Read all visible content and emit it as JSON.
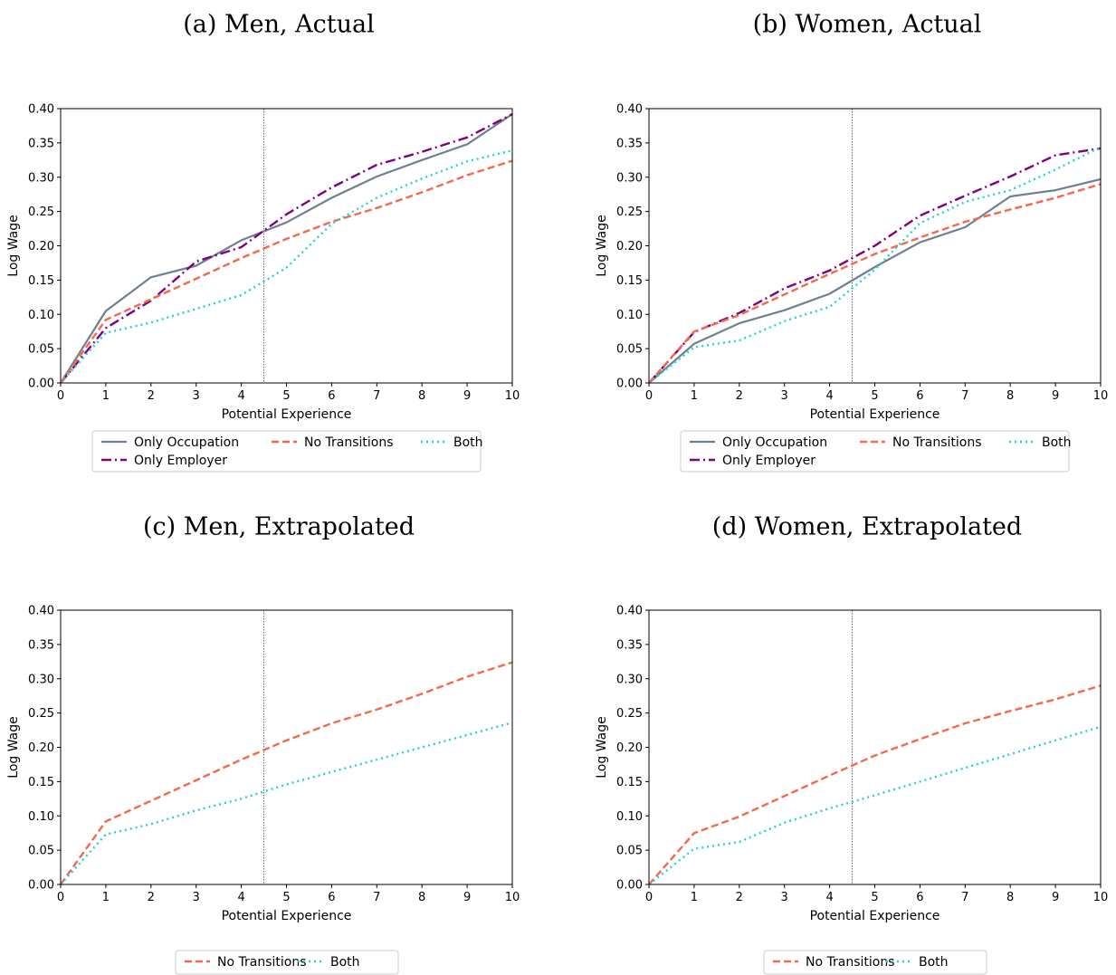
{
  "colors": {
    "only_occupation": "#708090",
    "only_employer": "#800080",
    "no_transitions": "#F4694B",
    "both": "#20D2D2",
    "vline": "#444444"
  },
  "chart_data": [
    {
      "type": "line",
      "title": "(a) Men, Actual",
      "xlabel": "Potential Experience",
      "ylabel": "Log Wage",
      "xlim": [
        0,
        10
      ],
      "ylim": [
        0,
        0.4
      ],
      "xticks": [
        "0",
        "1",
        "2",
        "3",
        "4",
        "5",
        "6",
        "7",
        "8",
        "9",
        "10"
      ],
      "yticks": [
        "0.00",
        "0.05",
        "0.10",
        "0.15",
        "0.20",
        "0.25",
        "0.30",
        "0.35",
        "0.40"
      ],
      "vline_x": 4.5,
      "legend_position": "bottom",
      "x": [
        0,
        1,
        2,
        3,
        4,
        5,
        6,
        7,
        8,
        9,
        10
      ],
      "series": [
        {
          "name": "Only Occupation",
          "key": "only_occupation",
          "values": [
            0,
            0.105,
            0.154,
            0.171,
            0.208,
            0.234,
            0.27,
            0.301,
            0.325,
            0.348,
            0.392
          ]
        },
        {
          "name": "Only Employer",
          "key": "only_employer",
          "values": [
            0,
            0.08,
            0.12,
            0.177,
            0.198,
            0.246,
            0.285,
            0.318,
            0.337,
            0.358,
            0.392
          ]
        },
        {
          "name": "No Transitions",
          "key": "no_transitions",
          "values": [
            0,
            0.092,
            0.122,
            0.152,
            0.182,
            0.21,
            0.235,
            0.255,
            0.278,
            0.303,
            0.324
          ]
        },
        {
          "name": "Both",
          "key": "both",
          "values": [
            0,
            0.073,
            0.088,
            0.108,
            0.128,
            0.168,
            0.232,
            0.27,
            0.298,
            0.323,
            0.339
          ]
        }
      ]
    },
    {
      "type": "line",
      "title": "(b) Women, Actual",
      "xlabel": "Potential Experience",
      "ylabel": "Log Wage",
      "xlim": [
        0,
        10
      ],
      "ylim": [
        0,
        0.4
      ],
      "xticks": [
        "0",
        "1",
        "2",
        "3",
        "4",
        "5",
        "6",
        "7",
        "8",
        "9",
        "10"
      ],
      "yticks": [
        "0.00",
        "0.05",
        "0.10",
        "0.15",
        "0.20",
        "0.25",
        "0.30",
        "0.35",
        "0.40"
      ],
      "vline_x": 4.5,
      "legend_position": "bottom",
      "x": [
        0,
        1,
        2,
        3,
        4,
        5,
        6,
        7,
        8,
        9,
        10
      ],
      "series": [
        {
          "name": "Only Occupation",
          "key": "only_occupation",
          "values": [
            0,
            0.057,
            0.087,
            0.106,
            0.13,
            0.169,
            0.205,
            0.227,
            0.272,
            0.281,
            0.297
          ]
        },
        {
          "name": "Only Employer",
          "key": "only_employer",
          "values": [
            0,
            0.074,
            0.102,
            0.138,
            0.164,
            0.2,
            0.244,
            0.273,
            0.301,
            0.332,
            0.342
          ]
        },
        {
          "name": "No Transitions",
          "key": "no_transitions",
          "values": [
            0,
            0.075,
            0.099,
            0.129,
            0.159,
            0.188,
            0.212,
            0.235,
            0.253,
            0.27,
            0.29
          ]
        },
        {
          "name": "Both",
          "key": "both",
          "values": [
            0,
            0.052,
            0.062,
            0.09,
            0.111,
            0.165,
            0.233,
            0.264,
            0.281,
            0.311,
            0.344
          ]
        }
      ]
    },
    {
      "type": "line",
      "title": "(c) Men, Extrapolated",
      "xlabel": "Potential Experience",
      "ylabel": "Log Wage",
      "xlim": [
        0,
        10
      ],
      "ylim": [
        0,
        0.4
      ],
      "xticks": [
        "0",
        "1",
        "2",
        "3",
        "4",
        "5",
        "6",
        "7",
        "8",
        "9",
        "10"
      ],
      "yticks": [
        "0.00",
        "0.05",
        "0.10",
        "0.15",
        "0.20",
        "0.25",
        "0.30",
        "0.35",
        "0.40"
      ],
      "vline_x": 4.5,
      "legend_position": "bottom",
      "x": [
        0,
        1,
        2,
        3,
        4,
        5,
        6,
        7,
        8,
        9,
        10
      ],
      "series": [
        {
          "name": "No Transitions",
          "key": "no_transitions",
          "values": [
            0,
            0.092,
            0.122,
            0.152,
            0.182,
            0.21,
            0.235,
            0.255,
            0.278,
            0.303,
            0.324
          ]
        },
        {
          "name": "Both",
          "key": "both",
          "values": [
            0,
            0.073,
            0.088,
            0.108,
            0.125,
            0.146,
            0.164,
            0.182,
            0.2,
            0.218,
            0.236
          ]
        }
      ]
    },
    {
      "type": "line",
      "title": "(d) Women, Extrapolated",
      "xlabel": "Potential Experience",
      "ylabel": "Log Wage",
      "xlim": [
        0,
        10
      ],
      "ylim": [
        0,
        0.4
      ],
      "xticks": [
        "0",
        "1",
        "2",
        "3",
        "4",
        "5",
        "6",
        "7",
        "8",
        "9",
        "10"
      ],
      "yticks": [
        "0.00",
        "0.05",
        "0.10",
        "0.15",
        "0.20",
        "0.25",
        "0.30",
        "0.35",
        "0.40"
      ],
      "vline_x": 4.5,
      "legend_position": "bottom",
      "x": [
        0,
        1,
        2,
        3,
        4,
        5,
        6,
        7,
        8,
        9,
        10
      ],
      "series": [
        {
          "name": "No Transitions",
          "key": "no_transitions",
          "values": [
            0,
            0.075,
            0.099,
            0.129,
            0.159,
            0.188,
            0.212,
            0.235,
            0.253,
            0.27,
            0.29
          ]
        },
        {
          "name": "Both",
          "key": "both",
          "values": [
            0,
            0.052,
            0.062,
            0.09,
            0.111,
            0.13,
            0.15,
            0.17,
            0.19,
            0.21,
            0.23
          ]
        }
      ]
    }
  ]
}
